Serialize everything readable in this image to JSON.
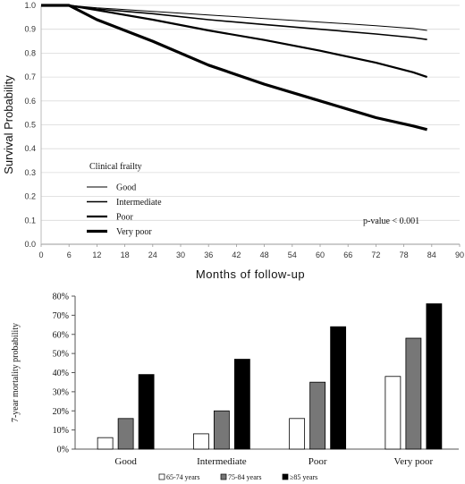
{
  "chart_data": [
    {
      "type": "line",
      "ylabel": "Survival Probability",
      "xlabel": "Months of follow-up",
      "xlim": [
        0,
        90
      ],
      "ylim": [
        0.0,
        1.0
      ],
      "xticks": [
        "0",
        "6",
        "12",
        "18",
        "24",
        "30",
        "36",
        "42",
        "48",
        "54",
        "60",
        "66",
        "72",
        "78",
        "84",
        "90"
      ],
      "yticks": [
        "0.0",
        "0.1",
        "0.2",
        "0.3",
        "0.4",
        "0.5",
        "0.6",
        "0.7",
        "0.8",
        "0.9",
        "1.0"
      ],
      "legend_title": "Clinical frailty",
      "legend_position": "lower-left",
      "annotation": "p-value < 0.001",
      "series": [
        {
          "name": "Good",
          "stroke": 1,
          "x": [
            0,
            6,
            12,
            24,
            36,
            48,
            60,
            72,
            80,
            83
          ],
          "y": [
            1.0,
            1.0,
            0.99,
            0.975,
            0.96,
            0.945,
            0.93,
            0.915,
            0.903,
            0.895
          ]
        },
        {
          "name": "Intermediate",
          "stroke": 1.6,
          "x": [
            0,
            6,
            12,
            24,
            36,
            48,
            60,
            72,
            80,
            83
          ],
          "y": [
            1.0,
            1.0,
            0.985,
            0.965,
            0.94,
            0.92,
            0.9,
            0.88,
            0.865,
            0.857
          ]
        },
        {
          "name": "Poor",
          "stroke": 2.2,
          "x": [
            0,
            6,
            12,
            24,
            36,
            48,
            60,
            72,
            80,
            83
          ],
          "y": [
            1.0,
            1.0,
            0.98,
            0.94,
            0.895,
            0.855,
            0.81,
            0.76,
            0.72,
            0.7
          ]
        },
        {
          "name": "Very poor",
          "stroke": 3.2,
          "x": [
            0,
            6,
            12,
            24,
            36,
            48,
            60,
            72,
            80,
            83
          ],
          "y": [
            1.0,
            1.0,
            0.94,
            0.85,
            0.75,
            0.67,
            0.6,
            0.53,
            0.495,
            0.48
          ]
        }
      ]
    },
    {
      "type": "bar",
      "ylabel": "7-year mortality probability",
      "ylim": [
        0,
        80
      ],
      "yticks": [
        "0%",
        "10%",
        "20%",
        "30%",
        "40%",
        "50%",
        "60%",
        "70%",
        "80%"
      ],
      "categories": [
        "Good",
        "Intermediate",
        "Poor",
        "Very poor"
      ],
      "legend_position": "bottom",
      "series": [
        {
          "name": "65-74 years",
          "color": "#ffffff",
          "values": [
            6,
            8,
            16,
            38
          ]
        },
        {
          "name": "75-84 years",
          "color": "#777777",
          "values": [
            16,
            20,
            35,
            58
          ]
        },
        {
          "name": "≥85 years",
          "color": "#000000",
          "values": [
            39,
            47,
            64,
            76
          ]
        }
      ]
    }
  ]
}
